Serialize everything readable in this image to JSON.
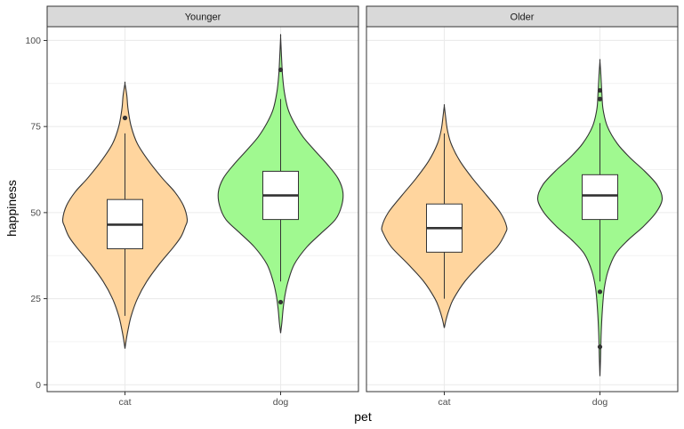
{
  "chart_data": {
    "type": "violin",
    "xlabel": "pet",
    "ylabel": "happiness",
    "ylim": [
      -2,
      104
    ],
    "yticks": [
      0,
      25,
      50,
      75,
      100
    ],
    "categories": [
      "cat",
      "dog"
    ],
    "grid": true,
    "colors": {
      "cat": "#ffd59e",
      "dog": "#a0f990",
      "outline": "#333333",
      "strip": "#d9d9d9",
      "grid": "#ebebeb",
      "panel_border": "#333333"
    },
    "panels": [
      {
        "label": "Younger",
        "groups": [
          {
            "category": "cat",
            "violin_min": 10.5,
            "violin_max": 87.5,
            "density_profile": [
              [
                10.5,
                0.0
              ],
              [
                13,
                0.02
              ],
              [
                16,
                0.05
              ],
              [
                20,
                0.1
              ],
              [
                25,
                0.2
              ],
              [
                30,
                0.35
              ],
              [
                35,
                0.55
              ],
              [
                40,
                0.78
              ],
              [
                43,
                0.9
              ],
              [
                46,
                0.97
              ],
              [
                48,
                1.0
              ],
              [
                52,
                0.94
              ],
              [
                56,
                0.8
              ],
              [
                60,
                0.6
              ],
              [
                65,
                0.38
              ],
              [
                70,
                0.2
              ],
              [
                75,
                0.1
              ],
              [
                80,
                0.05
              ],
              [
                84,
                0.03
              ],
              [
                87.5,
                0.0
              ]
            ],
            "box": {
              "q1": 39.5,
              "median": 46.5,
              "q3": 53.8,
              "whisker_low": 20,
              "whisker_high": 73
            },
            "outliers": [
              77.5
            ]
          },
          {
            "category": "dog",
            "violin_min": 15,
            "violin_max": 101,
            "density_profile": [
              [
                15,
                0.0
              ],
              [
                18,
                0.02
              ],
              [
                22,
                0.04
              ],
              [
                26,
                0.07
              ],
              [
                30,
                0.12
              ],
              [
                35,
                0.22
              ],
              [
                40,
                0.42
              ],
              [
                44,
                0.65
              ],
              [
                48,
                0.88
              ],
              [
                52,
                0.98
              ],
              [
                56,
                1.0
              ],
              [
                60,
                0.92
              ],
              [
                64,
                0.75
              ],
              [
                68,
                0.55
              ],
              [
                72,
                0.36
              ],
              [
                76,
                0.22
              ],
              [
                80,
                0.12
              ],
              [
                85,
                0.06
              ],
              [
                90,
                0.03
              ],
              [
                95,
                0.015
              ],
              [
                101,
                0.0
              ]
            ],
            "box": {
              "q1": 48,
              "median": 55,
              "q3": 62,
              "whisker_low": 30,
              "whisker_high": 83
            },
            "outliers": [
              24,
              91.5
            ]
          }
        ]
      },
      {
        "label": "Older",
        "groups": [
          {
            "category": "cat",
            "violin_min": 16.5,
            "violin_max": 81,
            "density_profile": [
              [
                16.5,
                0.0
              ],
              [
                19,
                0.03
              ],
              [
                22,
                0.08
              ],
              [
                25,
                0.15
              ],
              [
                30,
                0.33
              ],
              [
                35,
                0.58
              ],
              [
                40,
                0.85
              ],
              [
                44,
                0.98
              ],
              [
                46,
                1.0
              ],
              [
                50,
                0.9
              ],
              [
                55,
                0.68
              ],
              [
                60,
                0.45
              ],
              [
                65,
                0.25
              ],
              [
                70,
                0.11
              ],
              [
                74,
                0.05
              ],
              [
                78,
                0.02
              ],
              [
                81,
                0.0
              ]
            ],
            "box": {
              "q1": 38.5,
              "median": 45.5,
              "q3": 52.5,
              "whisker_low": 25,
              "whisker_high": 73
            },
            "outliers": []
          },
          {
            "category": "dog",
            "violin_min": 2.5,
            "violin_max": 94,
            "density_profile": [
              [
                2.5,
                0.0
              ],
              [
                8,
                0.01
              ],
              [
                15,
                0.02
              ],
              [
                22,
                0.04
              ],
              [
                28,
                0.07
              ],
              [
                33,
                0.13
              ],
              [
                38,
                0.25
              ],
              [
                42,
                0.45
              ],
              [
                46,
                0.7
              ],
              [
                50,
                0.9
              ],
              [
                54,
                1.0
              ],
              [
                58,
                0.92
              ],
              [
                62,
                0.72
              ],
              [
                66,
                0.48
              ],
              [
                70,
                0.28
              ],
              [
                75,
                0.12
              ],
              [
                80,
                0.05
              ],
              [
                85,
                0.03
              ],
              [
                90,
                0.015
              ],
              [
                94,
                0.0
              ]
            ],
            "box": {
              "q1": 48,
              "median": 55,
              "q3": 61,
              "whisker_low": 30,
              "whisker_high": 76
            },
            "outliers": [
              11,
              27,
              83,
              85.5
            ]
          }
        ]
      }
    ]
  }
}
